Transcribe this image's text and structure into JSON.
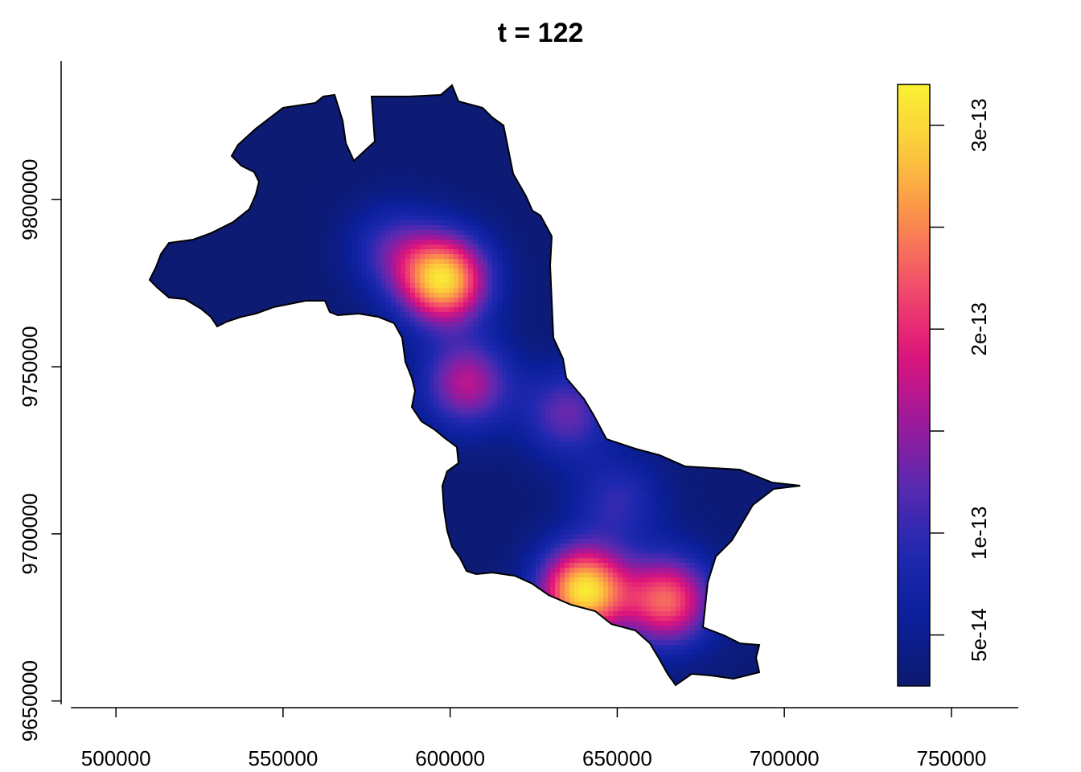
{
  "chart_data": {
    "type": "heatmap",
    "title": "t = 122",
    "xlabel": "",
    "ylabel": "",
    "x_ticks": [
      500000,
      550000,
      600000,
      650000,
      700000,
      750000
    ],
    "x_tick_labels": [
      "500000",
      "550000",
      "600000",
      "650000",
      "700000",
      "750000"
    ],
    "y_ticks": [
      9650000,
      9700000,
      9750000,
      9800000
    ],
    "y_tick_labels": [
      "9650000",
      "9700000",
      "9750000",
      "9800000"
    ],
    "xlim": [
      486000,
      770000
    ],
    "ylim": [
      9648000,
      9840000
    ],
    "colorbar": {
      "min": 2.5e-14,
      "max": 3.2e-13,
      "ticks": [
        5e-14,
        1e-13,
        2e-13,
        3e-13
      ],
      "tick_labels": [
        "5e-14",
        "1e-13",
        "2e-13",
        "3e-13"
      ],
      "palette": [
        "#0d1a6e",
        "#0b1f9a",
        "#1e28b0",
        "#5a2ab0",
        "#a0189a",
        "#e0157a",
        "#f24f6a",
        "#fb8e4c",
        "#fbc83c",
        "#f9f232"
      ]
    },
    "hotspots": [
      {
        "x": 598000,
        "y": 9776000,
        "value": 3e-13
      },
      {
        "x": 605000,
        "y": 9745000,
        "value": 1.7e-13
      },
      {
        "x": 635000,
        "y": 9736000,
        "value": 1.3e-13
      },
      {
        "x": 640000,
        "y": 9683000,
        "value": 3.1e-13
      },
      {
        "x": 665000,
        "y": 9680000,
        "value": 2.3e-13
      },
      {
        "x": 583000,
        "y": 9785000,
        "value": 1.1e-13
      },
      {
        "x": 650000,
        "y": 9710000,
        "value": 1e-13
      }
    ],
    "grid": false,
    "legend": "right"
  }
}
